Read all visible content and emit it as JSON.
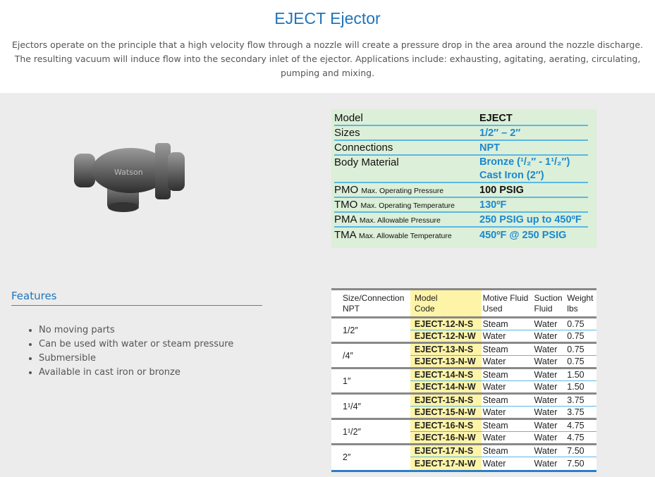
{
  "title": "EJECT Ejector",
  "description": "Ejectors operate on the principle that a high velocity flow through a nozzle will create a pressure drop in the area around the nozzle discharge. The resulting vacuum will induce flow into the secondary inlet of the ejector. Applications include: exhausting, agitating, aerating, circulating, pumping and mixing.",
  "colors": {
    "accent": "#1f74bb",
    "spec_bg": "#dcefd8",
    "spec_value": "#1a88d0",
    "model_col": "#fdf4a8"
  },
  "specs": [
    {
      "label": "Model",
      "sub": "",
      "value": "EJECT",
      "black": true
    },
    {
      "label": "Sizes",
      "sub": "",
      "value": "1/2″ – 2″"
    },
    {
      "label": "Connections",
      "sub": "",
      "value": "NPT"
    },
    {
      "label": "Body Material",
      "sub": "",
      "value": "Bronze (¹/₂″ - 1¹/₂″)",
      "value2": "Cast Iron (2″)"
    },
    {
      "label": "PMO",
      "sub": "Max. Operating Pressure",
      "value": "100 PSIG",
      "black": true
    },
    {
      "label": "TMO",
      "sub": "Max. Operating Temperature",
      "value": "130ºF"
    },
    {
      "label": "PMA",
      "sub": "Max. Allowable Pressure",
      "value": "250 PSIG up to 450ºF"
    },
    {
      "label": "TMA",
      "sub": "Max. Allowable Temperature",
      "value": "450ºF @ 250 PSIG"
    }
  ],
  "features": {
    "heading": "Features",
    "items": [
      "No moving parts",
      "Can be used with water or steam pressure",
      "Submersible",
      "Available in cast iron or bronze"
    ]
  },
  "table": {
    "headers": [
      [
        "Size/Connection",
        "NPT"
      ],
      [
        "Model",
        "Code"
      ],
      [
        "Motive Fluid",
        "Used"
      ],
      [
        "Suction",
        "Fluid"
      ],
      [
        "Weight",
        "lbs"
      ]
    ],
    "groups": [
      {
        "size": "1/2″",
        "rows": [
          [
            "EJECT-12-N-S",
            "Steam",
            "Water",
            "0.75"
          ],
          [
            "EJECT-12-N-W",
            "Water",
            "Water",
            "0.75"
          ]
        ]
      },
      {
        "size": "/4″",
        "rows": [
          [
            "EJECT-13-N-S",
            "Steam",
            "Water",
            "0.75"
          ],
          [
            "EJECT-13-N-W",
            "Water",
            "Water",
            "0.75"
          ]
        ]
      },
      {
        "size": "1″",
        "rows": [
          [
            "EJECT-14-N-S",
            "Steam",
            "Water",
            "1.50"
          ],
          [
            "EJECT-14-N-W",
            "Water",
            "Water",
            "1.50"
          ]
        ]
      },
      {
        "size": "1¹/4″",
        "rows": [
          [
            "EJECT-15-N-S",
            "Steam",
            "Water",
            "3.75"
          ],
          [
            "EJECT-15-N-W",
            "Water",
            "Water",
            "3.75"
          ]
        ]
      },
      {
        "size": "1¹/2″",
        "rows": [
          [
            "EJECT-16-N-S",
            "Steam",
            "Water",
            "4.75"
          ],
          [
            "EJECT-16-N-W",
            "Water",
            "Water",
            "4.75"
          ]
        ]
      },
      {
        "size": "2″",
        "rows": [
          [
            "EJECT-17-N-S",
            "Steam",
            "Water",
            "7.50"
          ],
          [
            "EJECT-17-N-W",
            "Water",
            "Water",
            "7.50"
          ]
        ]
      }
    ]
  }
}
